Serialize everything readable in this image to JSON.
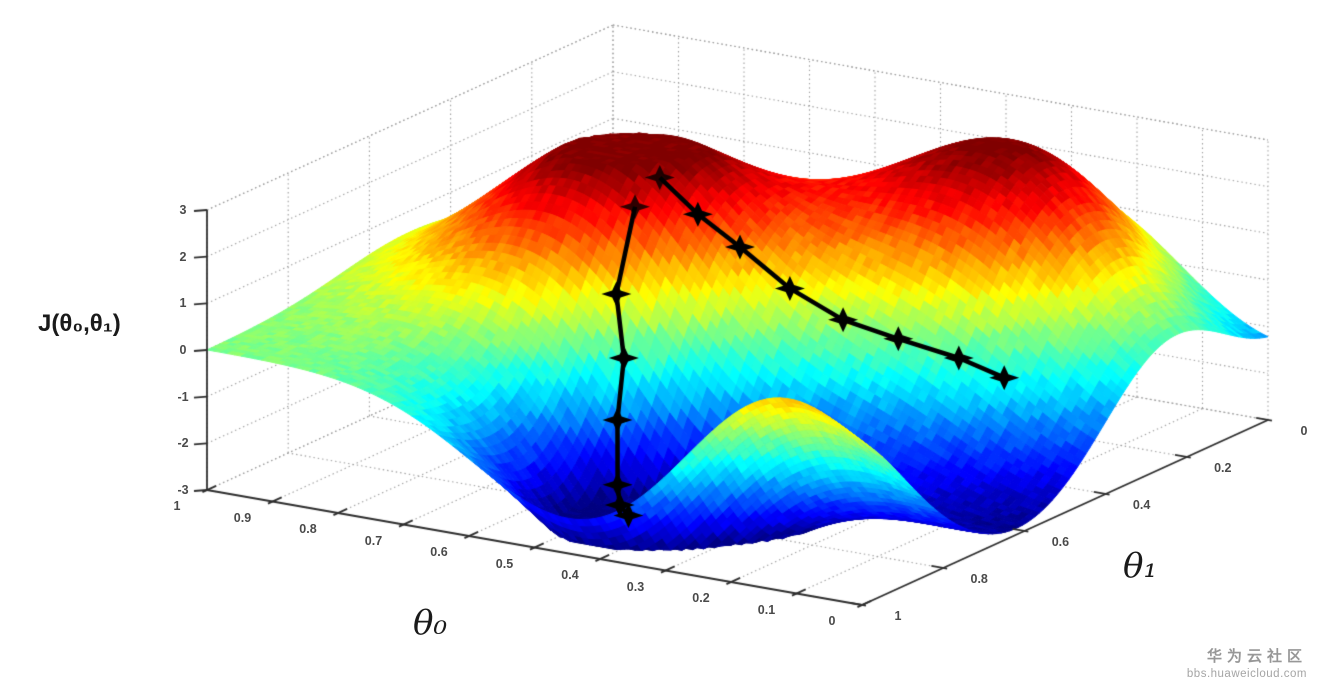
{
  "chart_data": {
    "type": "surface",
    "colormap": "jet",
    "grid": "dotted",
    "x_axis": {
      "label": "θ₀",
      "range": [
        0,
        1
      ],
      "ticks": [
        {
          "value": 0.0,
          "label": "0"
        },
        {
          "value": 0.1,
          "label": "0.1"
        },
        {
          "value": 0.2,
          "label": "0.2"
        },
        {
          "value": 0.3,
          "label": "0.3"
        },
        {
          "value": 0.4,
          "label": "0.4"
        },
        {
          "value": 0.5,
          "label": "0.5"
        },
        {
          "value": 0.6,
          "label": "0.6"
        },
        {
          "value": 0.7,
          "label": "0.7"
        },
        {
          "value": 0.8,
          "label": "0.8"
        },
        {
          "value": 0.9,
          "label": "0.9"
        },
        {
          "value": 1.0,
          "label": "1"
        }
      ]
    },
    "y_axis": {
      "label": "θ₁",
      "range": [
        0,
        1
      ],
      "ticks": [
        {
          "value": 0.0,
          "label": "0"
        },
        {
          "value": 0.2,
          "label": "0.2"
        },
        {
          "value": 0.4,
          "label": "0.4"
        },
        {
          "value": 0.6,
          "label": "0.6"
        },
        {
          "value": 0.8,
          "label": "0.8"
        },
        {
          "value": 1.0,
          "label": "1"
        }
      ]
    },
    "z_axis": {
      "label": "J(θ₀,θ₁)",
      "range": [
        -3,
        3
      ],
      "ticks": [
        {
          "value": 3,
          "label": "3"
        },
        {
          "value": 2,
          "label": "2"
        },
        {
          "value": 1,
          "label": "1"
        },
        {
          "value": 0,
          "label": "0"
        },
        {
          "value": -1,
          "label": "-1"
        },
        {
          "value": -2,
          "label": "-2"
        },
        {
          "value": -3,
          "label": "-3"
        }
      ]
    },
    "surface_features": [
      {
        "type": "peak",
        "height": 3.6,
        "theta0": 0.67,
        "theta1": 0.5,
        "sigma": 0.17
      },
      {
        "type": "peak",
        "height": 3.9,
        "theta0": 0.24,
        "theta1": 0.22,
        "sigma": 0.18
      },
      {
        "type": "valley",
        "height": -4.2,
        "theta0": 0.44,
        "theta1": 0.82,
        "sigma": 0.16
      },
      {
        "type": "valley",
        "height": -3.0,
        "theta0": 0.0,
        "theta1": 0.58,
        "sigma": 0.25
      },
      {
        "type": "valley",
        "height": -1.8,
        "theta0": 0.02,
        "theta1": 0.02,
        "sigma": 0.16
      },
      {
        "type": "ridge",
        "height": 2.2,
        "theta0": 0.13,
        "theta1": 1.04,
        "sigma": 0.13
      }
    ],
    "gradient_descent_paths": [
      {
        "name": "descent-to-front-minimum",
        "marker": "black-star",
        "points": [
          {
            "theta0": 0.61,
            "theta1": 0.575
          },
          {
            "theta0": 0.595,
            "theta1": 0.645
          },
          {
            "theta0": 0.565,
            "theta1": 0.675
          },
          {
            "theta0": 0.55,
            "theta1": 0.715
          },
          {
            "theta0": 0.525,
            "theta1": 0.755
          },
          {
            "theta0": 0.5,
            "theta1": 0.79
          },
          {
            "theta0": 0.465,
            "theta1": 0.825
          }
        ]
      },
      {
        "name": "descent-to-right-minimum",
        "marker": "black-star",
        "points": [
          {
            "theta0": 0.6,
            "theta1": 0.53
          },
          {
            "theta0": 0.545,
            "theta1": 0.525
          },
          {
            "theta0": 0.49,
            "theta1": 0.51
          },
          {
            "theta0": 0.42,
            "theta1": 0.5
          },
          {
            "theta0": 0.345,
            "theta1": 0.49
          },
          {
            "theta0": 0.27,
            "theta1": 0.475
          },
          {
            "theta0": 0.19,
            "theta1": 0.455
          },
          {
            "theta0": 0.13,
            "theta1": 0.44
          }
        ]
      }
    ],
    "colors": {
      "axis": "#2e2e2e",
      "grid": "#9c9c9c",
      "path": "#000000",
      "tick_label": "#4a4a4a",
      "background": "#ffffff"
    }
  },
  "watermark": {
    "line1": "华为云社区",
    "line2": "bbs.huaweicloud.com"
  }
}
